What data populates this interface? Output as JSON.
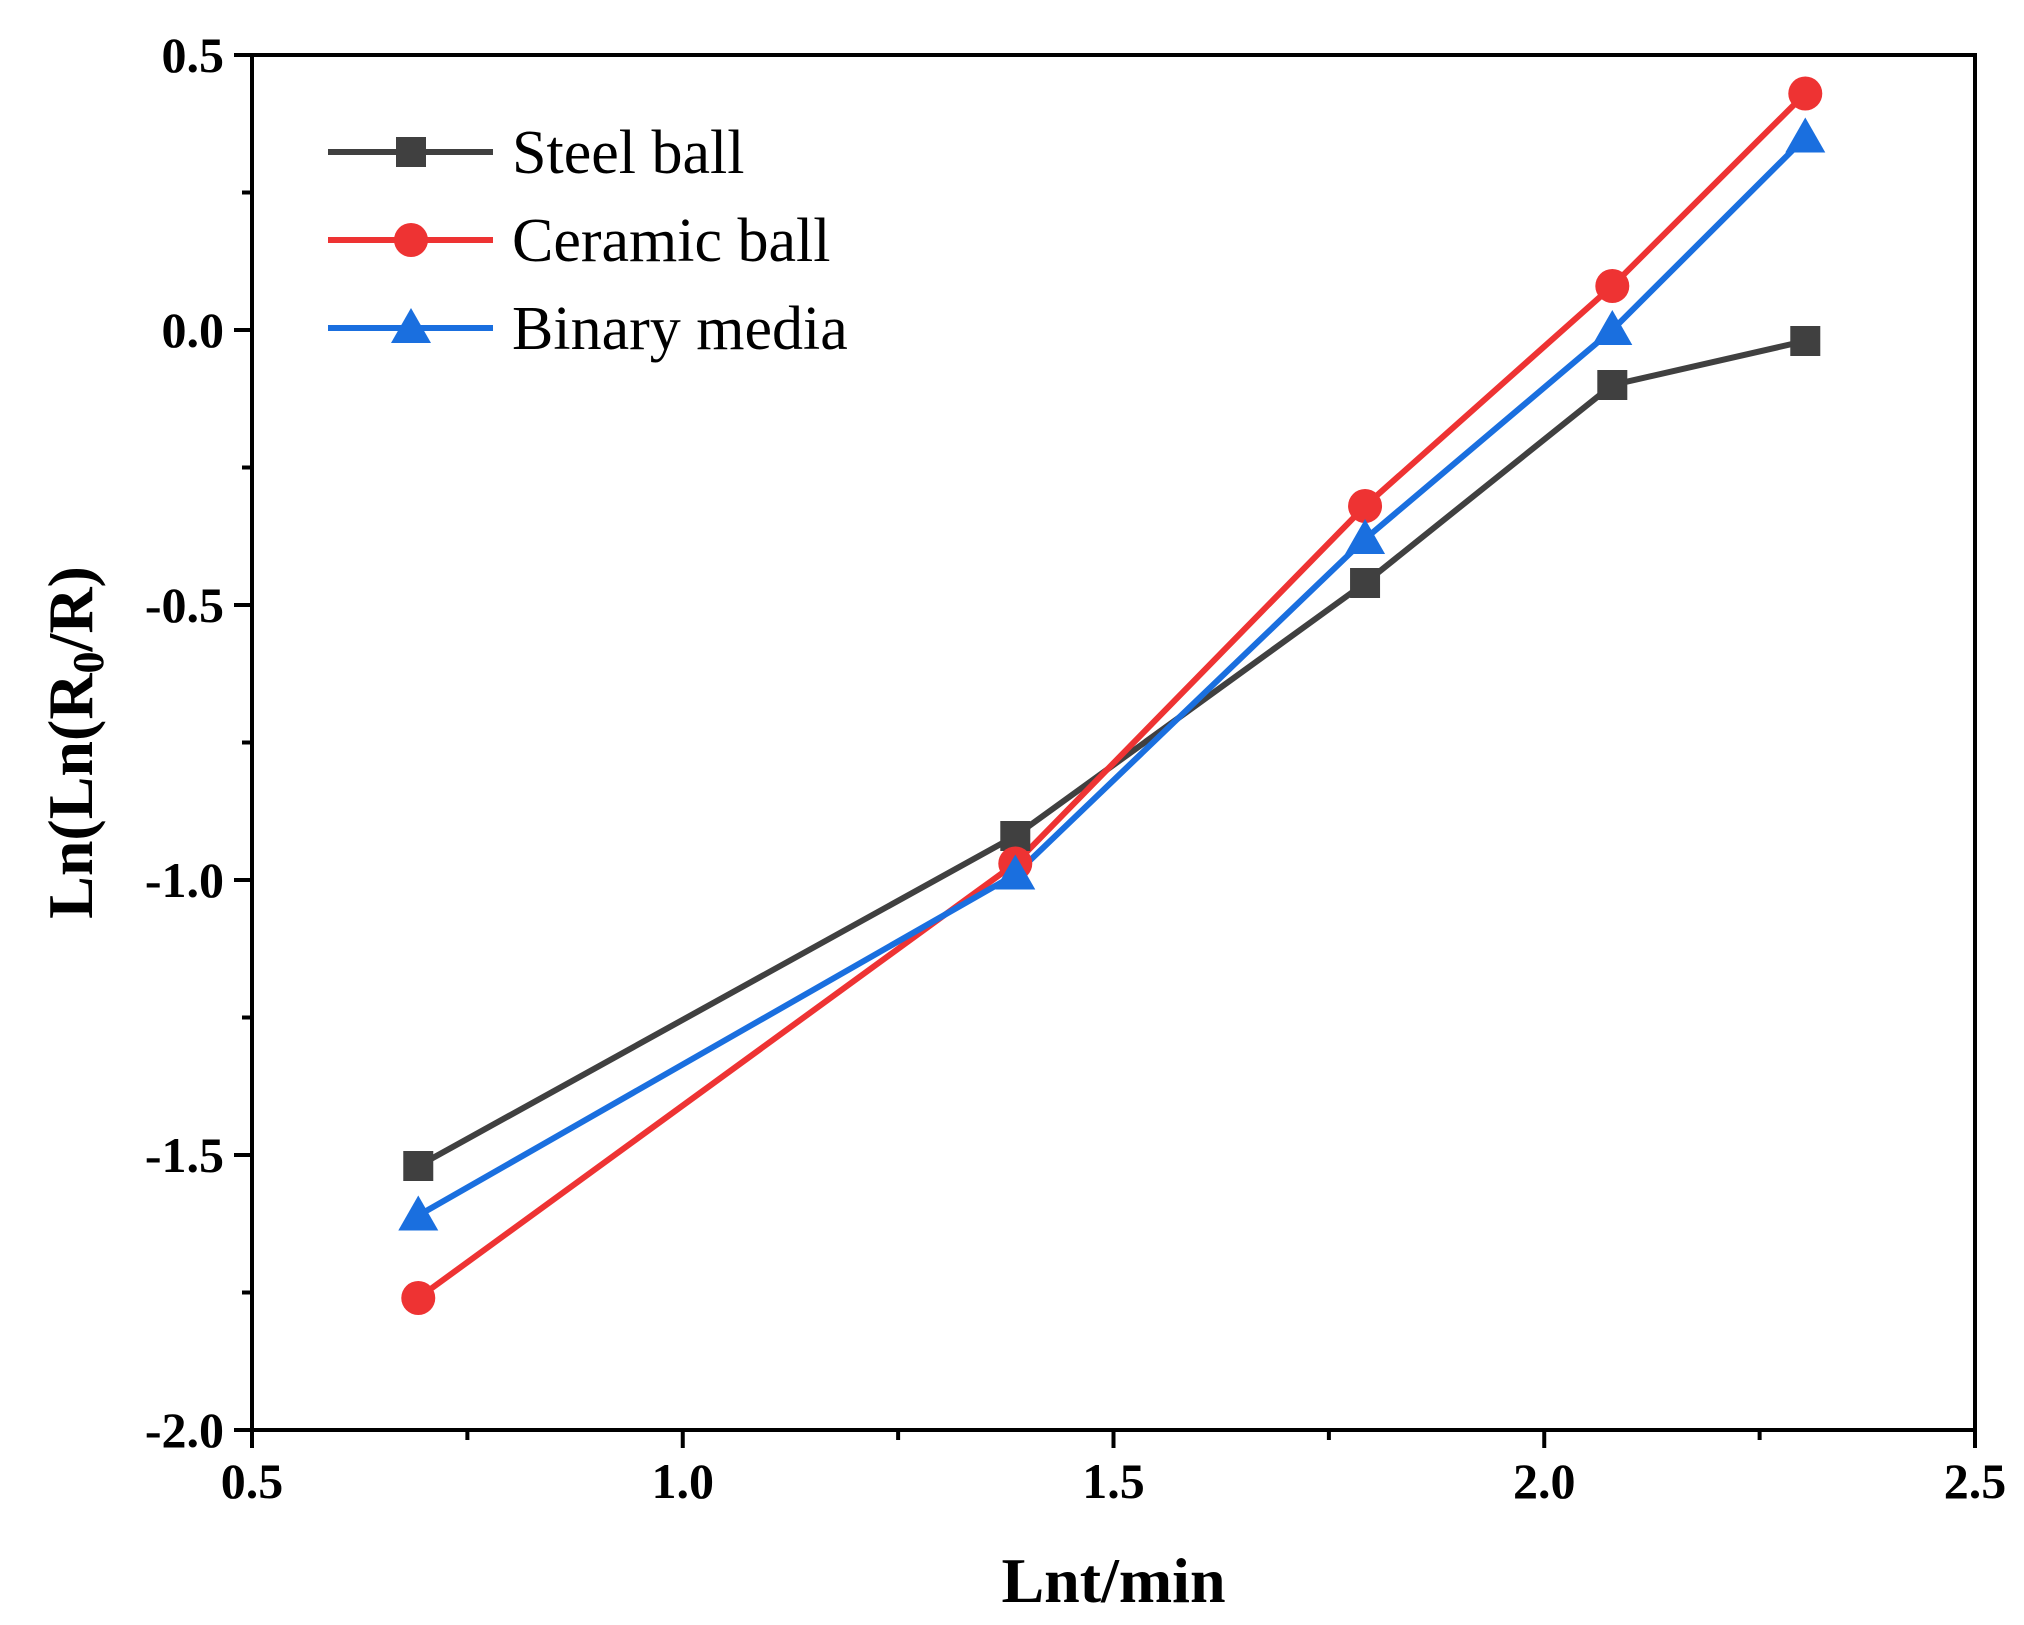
{
  "chart_data": {
    "type": "line",
    "title": "",
    "xlabel": "Lnt/min",
    "ylabel_parts": {
      "pre": "Ln(Ln(R",
      "sub": "0",
      "post": "/R)"
    },
    "xlim": [
      0.5,
      2.5
    ],
    "ylim": [
      -2.0,
      0.5
    ],
    "x_ticks": [
      0.5,
      1.0,
      1.5,
      2.0,
      2.5
    ],
    "x_tick_labels": [
      "0.5",
      "1.0",
      "1.5",
      "2.0",
      "2.5"
    ],
    "x_minor_ticks": [
      0.75,
      1.25,
      1.75,
      2.25
    ],
    "y_ticks": [
      0.5,
      0.0,
      -0.5,
      -1.0,
      -1.5,
      -2.0
    ],
    "y_tick_labels": [
      "0.5",
      "0.0",
      "-0.5",
      "-1.0",
      "-1.5",
      "-2.0"
    ],
    "y_minor_ticks": [
      0.25,
      -0.25,
      -0.75,
      -1.25,
      -1.75
    ],
    "grid": false,
    "legend_position": "top-left",
    "x": [
      0.693,
      1.386,
      1.792,
      2.079,
      2.303
    ],
    "series": [
      {
        "name": "Steel ball",
        "marker": "square",
        "color": "#404040",
        "values": [
          -1.52,
          -0.92,
          -0.46,
          -0.1,
          -0.02
        ]
      },
      {
        "name": "Ceramic ball",
        "marker": "circle",
        "color": "#ee3333",
        "values": [
          -1.76,
          -0.97,
          -0.32,
          0.08,
          0.43
        ]
      },
      {
        "name": "Binary media",
        "marker": "triangle",
        "color": "#1a6fdf",
        "values": [
          -1.61,
          -0.99,
          -0.38,
          0.0,
          0.35
        ]
      }
    ]
  }
}
